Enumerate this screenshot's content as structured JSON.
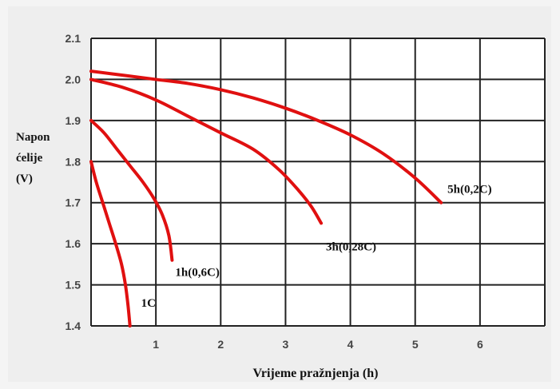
{
  "chart_data": {
    "type": "line",
    "ylabel_lines": [
      "Napon",
      "ćelije",
      "(V)"
    ],
    "xlabel": "Vrijeme pražnjenja (h)",
    "xlim": [
      0,
      7
    ],
    "ylim": [
      1.4,
      2.1
    ],
    "x_ticks": [
      "1",
      "2",
      "3",
      "4",
      "5",
      "6"
    ],
    "y_ticks": [
      "1.4",
      "1.5",
      "1.6",
      "1.7",
      "1.8",
      "1.9",
      "2.0",
      "2.1"
    ],
    "grid": true,
    "line_color": "#e01010",
    "series": [
      {
        "name": "1C",
        "points": [
          [
            0,
            1.8
          ],
          [
            0.08,
            1.75
          ],
          [
            0.18,
            1.7
          ],
          [
            0.28,
            1.65
          ],
          [
            0.38,
            1.6
          ],
          [
            0.47,
            1.55
          ],
          [
            0.53,
            1.5
          ],
          [
            0.57,
            1.45
          ],
          [
            0.6,
            1.4
          ]
        ]
      },
      {
        "name": "1h(0,6C)",
        "points": [
          [
            0,
            1.9
          ],
          [
            0.2,
            1.87
          ],
          [
            0.4,
            1.83
          ],
          [
            0.6,
            1.79
          ],
          [
            0.8,
            1.75
          ],
          [
            0.97,
            1.71
          ],
          [
            1.1,
            1.67
          ],
          [
            1.2,
            1.62
          ],
          [
            1.25,
            1.56
          ]
        ]
      },
      {
        "name": "3h(0,28C)",
        "points": [
          [
            0,
            2.0
          ],
          [
            0.5,
            1.98
          ],
          [
            1.0,
            1.95
          ],
          [
            1.5,
            1.91
          ],
          [
            2.0,
            1.87
          ],
          [
            2.5,
            1.83
          ],
          [
            2.9,
            1.78
          ],
          [
            3.2,
            1.73
          ],
          [
            3.4,
            1.69
          ],
          [
            3.55,
            1.65
          ]
        ]
      },
      {
        "name": "5h(0,2C)",
        "points": [
          [
            0,
            2.02
          ],
          [
            0.5,
            2.01
          ],
          [
            1.0,
            2.0
          ],
          [
            1.5,
            1.99
          ],
          [
            2.0,
            1.975
          ],
          [
            2.5,
            1.955
          ],
          [
            3.0,
            1.93
          ],
          [
            3.5,
            1.9
          ],
          [
            4.0,
            1.865
          ],
          [
            4.5,
            1.82
          ],
          [
            5.0,
            1.76
          ],
          [
            5.4,
            1.7
          ]
        ]
      }
    ]
  }
}
